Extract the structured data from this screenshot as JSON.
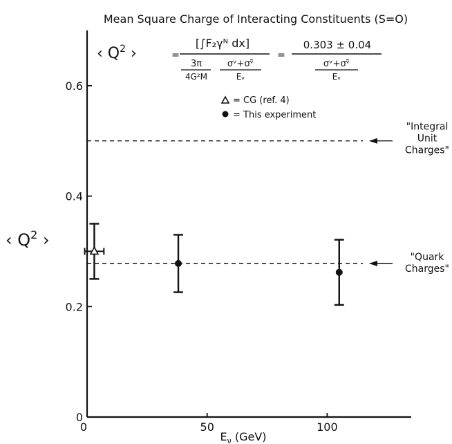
{
  "chart_data": {
    "type": "scatter",
    "title": "Mean  Square Charge of Interacting Constituents (S=O)",
    "xlabel": "E",
    "xlabel_sub": "ν",
    "xlabel_unit": " (GeV)",
    "ylabel": "‹ Q",
    "ylabel_sup": "2",
    "ylabel_close": " ›",
    "xlim": [
      0,
      135
    ],
    "ylim": [
      0,
      0.7
    ],
    "x_ticks": [
      0,
      50,
      100
    ],
    "x_tick_labels": [
      "0",
      "50",
      "100"
    ],
    "y_ticks": [
      0,
      0.2,
      0.4,
      0.6
    ],
    "y_tick_labels": [
      "0",
      "0.2",
      "0.4",
      "0.6"
    ],
    "grid": false,
    "legend_position": "top-center",
    "series": [
      {
        "name": "= CG (ref. 4)",
        "marker": "open-triangle",
        "points": [
          {
            "x": 3,
            "y": 0.3,
            "y_err": 0.05,
            "x_err": 4
          }
        ]
      },
      {
        "name": "= This experiment",
        "marker": "filled-circle",
        "points": [
          {
            "x": 38,
            "y": 0.278,
            "y_err": 0.052
          },
          {
            "x": 105,
            "y": 0.262,
            "y_err": 0.059
          }
        ]
      }
    ],
    "reference_lines": [
      {
        "y": 0.5,
        "style": "dashed",
        "label_lines": [
          "\"Integral",
          "Unit",
          "Charges\""
        ]
      },
      {
        "y": 0.278,
        "style": "dashed",
        "label_lines": [
          "\"Quark",
          "Charges\""
        ]
      }
    ],
    "formula": {
      "lhs": "‹ Q",
      "lhs_sup": "2",
      "lhs_close": " ›",
      "eq1": "=",
      "eq2": "=",
      "num_left": "[∫F₂γᴺ dx]",
      "den_left_a": "3π",
      "den_left_a_sub": "4G²M",
      "den_left_b": "σᵛ+σᵛ̄",
      "den_left_b_sub": "Eᵥ",
      "num_right": "0.303 ± 0.04",
      "den_right": "σᵛ+σᵛ̄",
      "den_right_sub": "Eᵥ"
    }
  }
}
